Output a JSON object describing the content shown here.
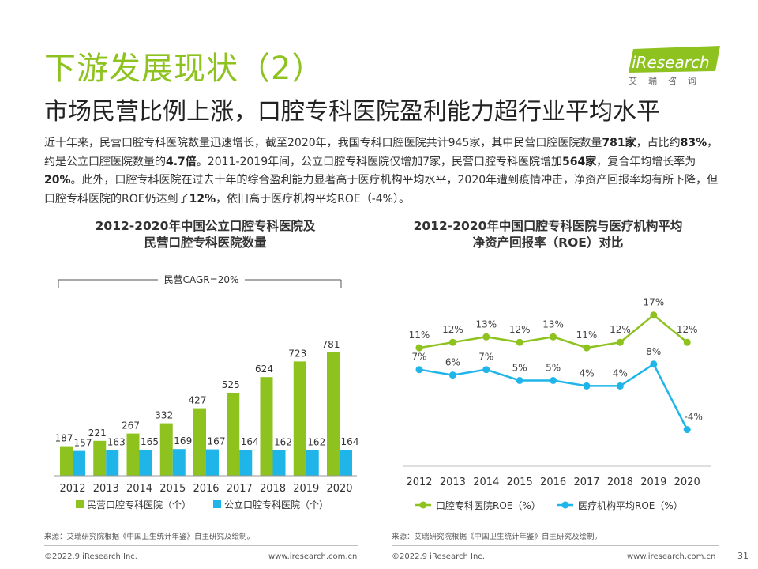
{
  "header": {
    "title": "下游发展现状（2）",
    "subtitle": "市场民营比例上涨，口腔专科医院盈利能力超行业平均水平",
    "logo_text": "iResearch",
    "logo_cn": "艾瑞咨询"
  },
  "body": {
    "p1": "近十年来，民营口腔专科医院数量迅速增长，截至2020年，我国专科口腔医院共计945家，其中民营口腔医院数量",
    "b1": "781家",
    "p2": "，占比约",
    "b2": "83%",
    "p3": "，约是公立口腔医院数量的",
    "b3": "4.7倍",
    "p4": "。2011-2019年间，公立口腔专科医院仅增加7家，民营口腔专科医院增加",
    "b4": "564家",
    "p5": "，复合年均增长率为",
    "b5": "20%",
    "p6": "。此外，口腔专科医院在过去十年的综合盈利能力显著高于医疗机构平均水平，2020年遭到疫情冲击，净资产回报率均有所下降，但口腔专科医院的ROE仍达到了",
    "b6": "12%",
    "p7": "，依旧高于医疗机构平均ROE（-4%）。"
  },
  "left_chart_title_line1": "2012-2020年中国公立口腔专科医院及",
  "left_chart_title_line2": "民营口腔专科医院数量",
  "right_chart_title_line1": "2012-2020年中国口腔专科医院与医疗机构平均",
  "right_chart_title_line2": "净资产回报率（ROE）对比",
  "left_source": "来源：艾瑞研究院根据《中国卫生统计年鉴》自主研究及绘制。",
  "right_source": "来源：艾瑞研究院根据《中国卫生统计年鉴》自主研究及绘制。",
  "footer": {
    "left_copyright": "©2022.9 iResearch Inc.",
    "left_url": "www.iresearch.com.cn",
    "right_copyright": "©2022.9 iResearch Inc.",
    "right_url": "www.iresearch.com.cn",
    "page_number": "31"
  },
  "colors": {
    "green": "#8dc21f",
    "blue": "#1fb5e8",
    "title_green": "#8dc21f"
  },
  "chart_data": [
    {
      "type": "bar",
      "categories": [
        "2012",
        "2013",
        "2014",
        "2015",
        "2016",
        "2017",
        "2018",
        "2019",
        "2020"
      ],
      "series": [
        {
          "name": "民营口腔专科医院（个）",
          "color": "#8dc21f",
          "values": [
            187,
            221,
            267,
            332,
            427,
            525,
            624,
            723,
            781
          ]
        },
        {
          "name": "公立口腔专科医院（个）",
          "color": "#1fb5e8",
          "values": [
            157,
            163,
            165,
            169,
            167,
            164,
            162,
            162,
            164
          ]
        }
      ],
      "annotation": "民营CAGR=20%",
      "legend_position": "bottom",
      "grid": false
    },
    {
      "type": "line",
      "categories": [
        "2012",
        "2013",
        "2014",
        "2015",
        "2016",
        "2017",
        "2018",
        "2019",
        "2020"
      ],
      "series": [
        {
          "name": "口腔专科医院ROE（%）",
          "color": "#8dc21f",
          "values": [
            11,
            12,
            13,
            12,
            13,
            11,
            12,
            17,
            12
          ],
          "labels": [
            "11%",
            "12%",
            "13%",
            "12%",
            "13%",
            "11%",
            "12%",
            "17%",
            "12%"
          ]
        },
        {
          "name": "医疗机构平均ROE（%）",
          "color": "#1fb5e8",
          "values": [
            7,
            6,
            7,
            5,
            5,
            4,
            4,
            8,
            -4
          ],
          "labels": [
            "7%",
            "6%",
            "7%",
            "5%",
            "5%",
            "4%",
            "4%",
            "8%",
            "-4%"
          ]
        }
      ],
      "legend_position": "bottom",
      "grid": false
    }
  ]
}
